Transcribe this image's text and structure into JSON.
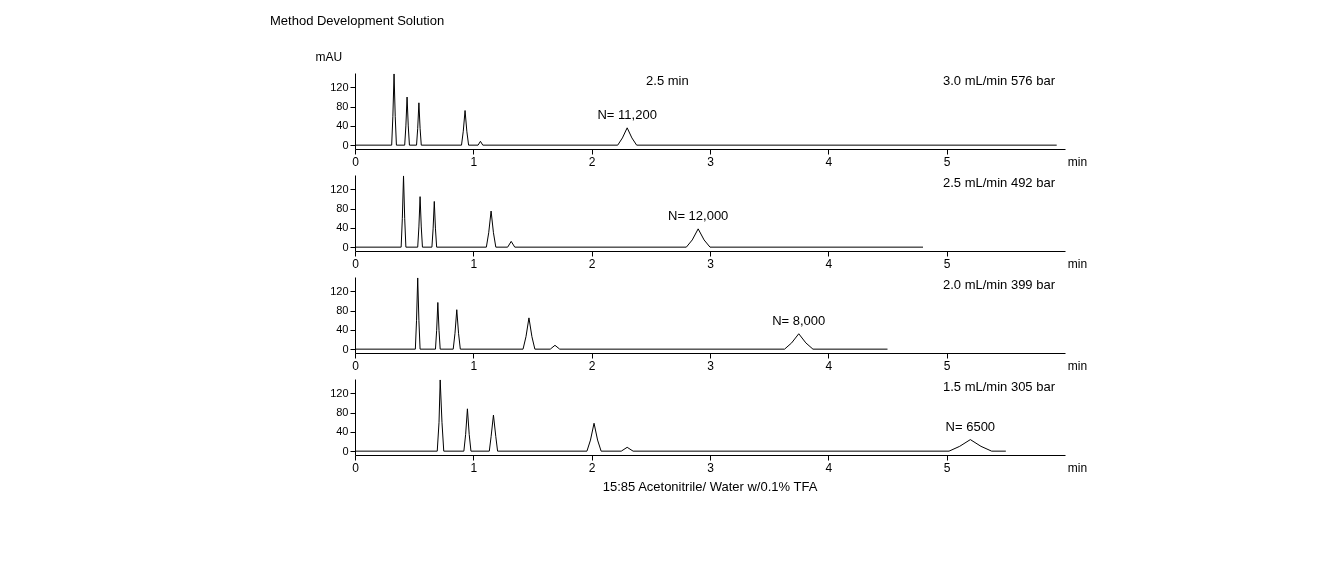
{
  "chart_data": [
    {
      "type": "line",
      "title": "Method Development Solution",
      "ylabel": "mAU",
      "xlabel": "min",
      "xlim": [
        0,
        6
      ],
      "xticks": [
        0,
        1,
        2,
        3,
        4,
        5
      ],
      "ylim": [
        -8,
        150
      ],
      "yticks": [
        0,
        40,
        80,
        120
      ],
      "annotations": [
        "2.5 min",
        "3.0 mL/min 576 bar",
        {
          "text": "N= 11,200",
          "x": 2.3,
          "y": 36
        }
      ],
      "series": [
        {
          "color": "#000000",
          "x": [
            0,
            0.31,
            0.32,
            0.33,
            0.34,
            0.35,
            0.42,
            0.43,
            0.44,
            0.45,
            0.46,
            0.52,
            0.53,
            0.54,
            0.55,
            0.56,
            0.9,
            0.915,
            0.93,
            0.945,
            0.96,
            1.04,
            1.06,
            1.08,
            2.22,
            2.26,
            2.3,
            2.34,
            2.38,
            5.93
          ],
          "values": [
            0,
            0,
            60,
            148,
            60,
            0,
            0,
            40,
            100,
            40,
            0,
            0,
            35,
            88,
            35,
            0,
            0,
            29,
            72,
            29,
            0,
            0,
            8,
            0,
            0,
            15,
            36,
            15,
            0,
            0
          ]
        }
      ]
    },
    {
      "type": "line",
      "xlabel": "min",
      "xlim": [
        0,
        6
      ],
      "xticks": [
        0,
        1,
        2,
        3,
        4,
        5
      ],
      "ylim": [
        -8,
        150
      ],
      "yticks": [
        0,
        40,
        80,
        120
      ],
      "annotations": [
        "2.5 mL/min 492 bar",
        {
          "text": "N= 12,000",
          "x": 2.9,
          "y": 38
        }
      ],
      "series": [
        {
          "color": "#000000",
          "x": [
            0,
            0.39,
            0.4,
            0.41,
            0.42,
            0.43,
            0.53,
            0.54,
            0.55,
            0.56,
            0.57,
            0.65,
            0.66,
            0.67,
            0.68,
            0.69,
            1.11,
            1.13,
            1.15,
            1.17,
            1.19,
            1.29,
            1.32,
            1.35,
            2.8,
            2.85,
            2.9,
            2.95,
            3.0,
            4.8
          ],
          "values": [
            0,
            0,
            60,
            148,
            60,
            0,
            0,
            42,
            105,
            42,
            0,
            0,
            38,
            95,
            38,
            0,
            0,
            30,
            75,
            30,
            0,
            0,
            12,
            0,
            0,
            15,
            38,
            15,
            0,
            0
          ]
        }
      ]
    },
    {
      "type": "line",
      "xlabel": "min",
      "xlim": [
        0,
        6
      ],
      "xticks": [
        0,
        1,
        2,
        3,
        4,
        5
      ],
      "ylim": [
        -8,
        150
      ],
      "yticks": [
        0,
        40,
        80,
        120
      ],
      "annotations": [
        "2.0 mL/min 399 bar",
        {
          "text": "N= 8,000",
          "x": 3.75,
          "y": 32
        }
      ],
      "series": [
        {
          "color": "#000000",
          "x": [
            0,
            0.51,
            0.52,
            0.53,
            0.54,
            0.55,
            0.68,
            0.69,
            0.7,
            0.71,
            0.72,
            0.83,
            0.845,
            0.86,
            0.875,
            0.89,
            1.42,
            1.445,
            1.47,
            1.495,
            1.52,
            1.65,
            1.69,
            1.73,
            3.63,
            3.69,
            3.75,
            3.81,
            3.87,
            4.5
          ],
          "values": [
            0,
            0,
            60,
            148,
            60,
            0,
            0,
            39,
            97,
            39,
            0,
            0,
            33,
            82,
            33,
            0,
            0,
            26,
            65,
            26,
            0,
            0,
            8,
            0,
            0,
            13,
            32,
            13,
            0,
            0
          ]
        }
      ]
    },
    {
      "type": "line",
      "xlabel": "min",
      "xlim": [
        0,
        6
      ],
      "xticks": [
        0,
        1,
        2,
        3,
        4,
        5
      ],
      "ylim": [
        -8,
        150
      ],
      "yticks": [
        0,
        40,
        80,
        120
      ],
      "annotations": [
        "1.5 mL/min 305 bar",
        {
          "text": "N= 6500",
          "x": 5.2,
          "y": 24
        }
      ],
      "series": [
        {
          "color": "#000000",
          "x": [
            0,
            0.695,
            0.71,
            0.72,
            0.735,
            0.75,
            0.92,
            0.935,
            0.95,
            0.965,
            0.98,
            1.135,
            1.15,
            1.17,
            1.19,
            1.205,
            1.96,
            1.99,
            2.02,
            2.05,
            2.08,
            2.25,
            2.3,
            2.35,
            5.02,
            5.11,
            5.2,
            5.29,
            5.38,
            5.5
          ],
          "values": [
            0,
            0,
            60,
            148,
            60,
            0,
            0,
            35,
            88,
            35,
            0,
            0,
            30,
            75,
            30,
            0,
            0,
            23,
            58,
            23,
            0,
            0,
            8,
            0,
            0,
            10,
            24,
            10,
            0,
            0
          ]
        }
      ]
    },
    {
      "type": "other",
      "annotations": [
        "15:85 Acetonitrile/ Water w/0.1% TFA"
      ]
    }
  ]
}
